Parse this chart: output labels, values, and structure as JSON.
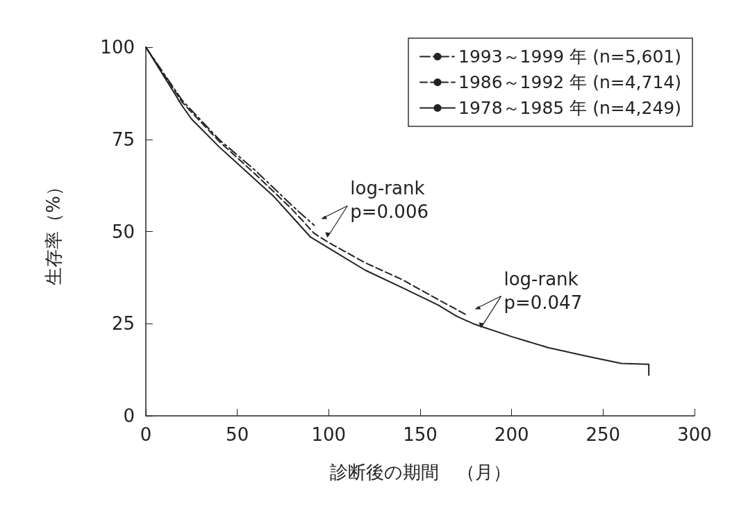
{
  "chart_data": {
    "type": "line",
    "xlabel": "診断後の期間　（月）",
    "ylabel": "生存率（%）",
    "xlim": [
      0,
      300
    ],
    "xticks": [
      0,
      50,
      100,
      150,
      200,
      250,
      300
    ],
    "ylim": [
      0,
      100
    ],
    "yticks": [
      0,
      25,
      50,
      75,
      100
    ],
    "grid": false,
    "legend": "top right",
    "marker": "none",
    "series": [
      {
        "name": "1993～1999 年 (n=5,601)",
        "color": "#222222",
        "line_style": "dashdot",
        "x": [
          0,
          20,
          40,
          60,
          80,
          92
        ],
        "values": [
          100,
          85.5,
          75,
          66.5,
          57,
          51.7
        ]
      },
      {
        "name": "1986～1992 年 (n=4,714)",
        "color": "#222222",
        "line_style": "dashed",
        "x": [
          0,
          20,
          40,
          60,
          80,
          92,
          100,
          120,
          140,
          160,
          176
        ],
        "values": [
          100,
          85,
          74.5,
          65.5,
          56,
          49.5,
          47,
          41.5,
          37,
          31.5,
          27.2
        ]
      },
      {
        "name": "1978～1985 年 (n=4,249)",
        "color": "#222222",
        "line_style": "solid",
        "x": [
          0,
          10,
          20,
          25,
          40,
          60,
          70,
          80,
          90,
          100,
          120,
          140,
          160,
          170,
          180,
          200,
          220,
          240,
          260,
          275,
          275
        ],
        "values": [
          100,
          92,
          84,
          80.5,
          73,
          64,
          59.5,
          54,
          48.5,
          45.5,
          39.5,
          34.8,
          30,
          27,
          24.8,
          21.5,
          18.5,
          16.3,
          14.2,
          14,
          11
        ]
      }
    ],
    "annotations": [
      {
        "text": "log-rank\np=0.006",
        "x": 92,
        "y": 51.7
      },
      {
        "text": "log-rank\np=0.047",
        "x": 176,
        "y": 27.2
      }
    ]
  }
}
